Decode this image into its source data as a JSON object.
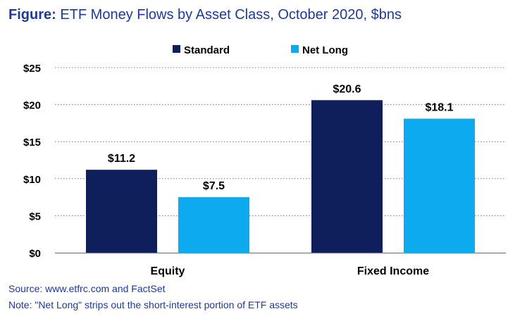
{
  "header": {
    "title_prefix": "Figure:",
    "title_text": " ETF Money Flows by Asset Class, October 2020, $bns"
  },
  "chart_data": {
    "type": "bar",
    "categories": [
      "Equity",
      "Fixed Income"
    ],
    "series": [
      {
        "name": "Standard",
        "values": [
          11.2,
          20.6
        ],
        "labels": [
          "$11.2",
          "$20.6"
        ],
        "color": "#0e1f5c"
      },
      {
        "name": "Net Long",
        "values": [
          7.5,
          18.1
        ],
        "labels": [
          "$7.5",
          "$18.1"
        ],
        "color": "#0eaaef"
      }
    ],
    "ylim": [
      0,
      25
    ],
    "yticks": [
      0,
      5,
      10,
      15,
      20,
      25
    ],
    "ytick_labels": [
      "$0",
      "$5",
      "$10",
      "$15",
      "$20",
      "$25"
    ],
    "grid": true,
    "legend_position": "top"
  },
  "footer": {
    "source": "Source: www.etfrc.com and FactSet",
    "note": "Note: \"Net Long\" strips out the short-interest portion of ETF assets"
  }
}
